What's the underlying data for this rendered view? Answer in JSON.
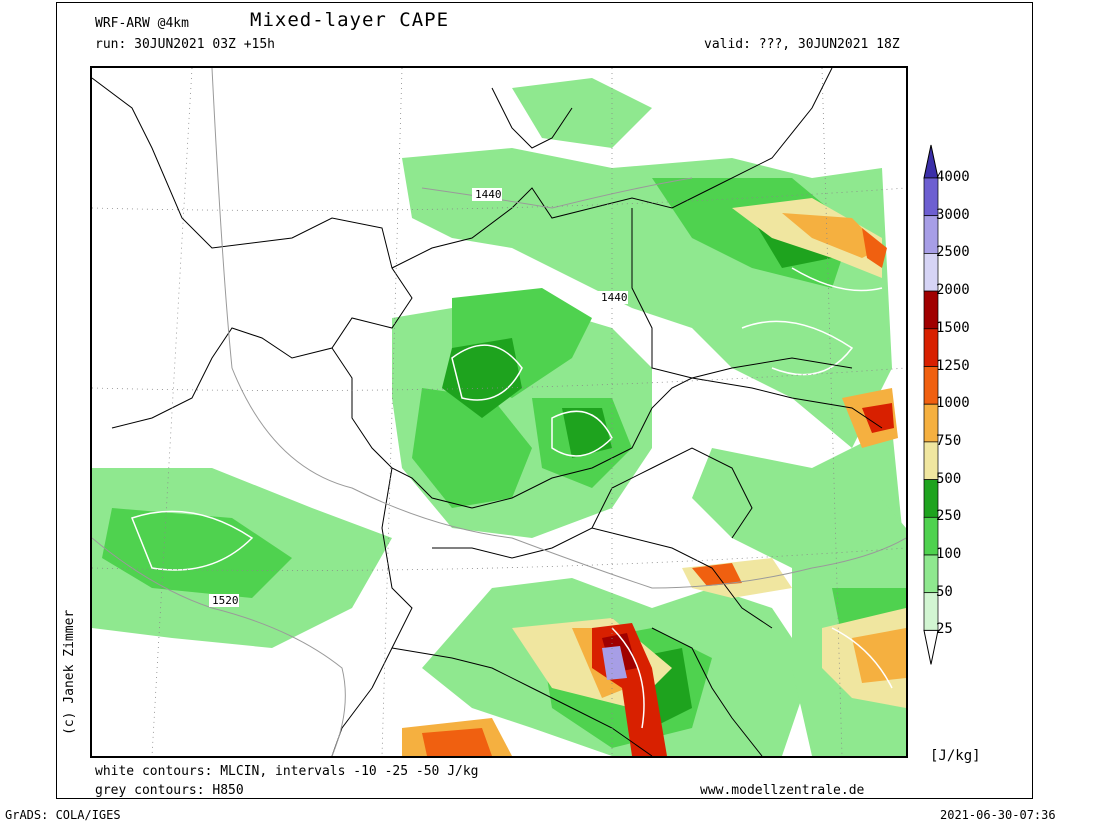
{
  "header": {
    "model": "WRF-ARW @4km",
    "title": "Mixed-layer CAPE",
    "run": "run: 30JUN2021 03Z +15h",
    "valid": "valid: ???, 30JUN2021 18Z"
  },
  "map": {
    "contour_labels": [
      "1440",
      "1440",
      "1520"
    ]
  },
  "colorbar": {
    "unit": "[J/kg]",
    "levels": [
      "4000",
      "3000",
      "2500",
      "2000",
      "1500",
      "1250",
      "1000",
      "750",
      "500",
      "250",
      "100",
      "50",
      "25"
    ],
    "colors": [
      "#3b2fa8",
      "#6d5fd1",
      "#a79ee6",
      "#d6d4f5",
      "#a00000",
      "#d82000",
      "#f06010",
      "#f5b040",
      "#f0e6a0",
      "#1ea31e",
      "#4fd24f",
      "#8fe88f",
      "#d2f5d2",
      "#ffffff"
    ]
  },
  "footer": {
    "white_contours": "white contours: MLCIN, intervals -10 -25 -50 J/kg",
    "grey_contours": "grey contours: H850",
    "website": "www.modellzentrale.de",
    "copyright": "(c) Janek Zimmer",
    "grads": "GrADS: COLA/IGES",
    "timestamp": "2021-06-30-07:36"
  }
}
